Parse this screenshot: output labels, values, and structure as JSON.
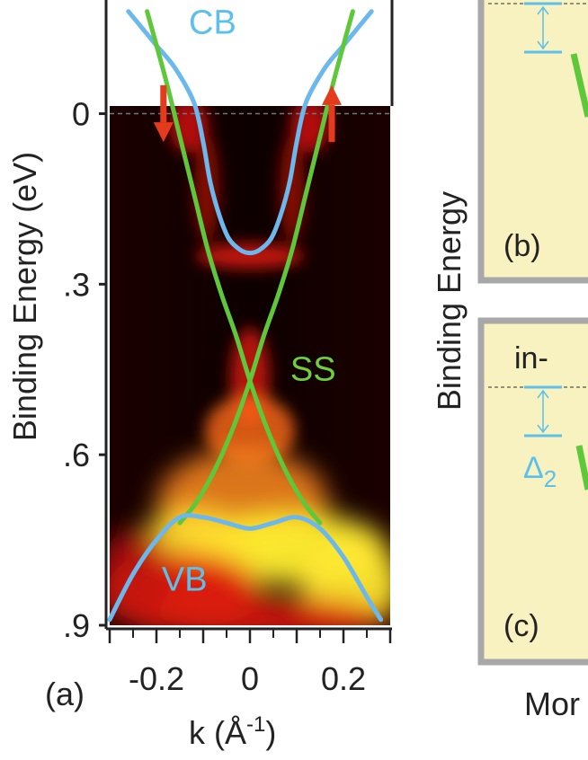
{
  "chart_data": [
    {
      "panel_label": "(a)",
      "type": "line",
      "xlabel": "k (Å",
      "xlabel_sup": "-1",
      "xlabel_suffix": ")",
      "ylabel": "Binding Energy (eV)",
      "xlim": [
        -0.3,
        0.3
      ],
      "ylim": [
        -0.2,
        0.9
      ],
      "y_inverted": true,
      "x_ticks": [
        -0.2,
        0,
        0.2
      ],
      "x_tick_labels": [
        "-0.2",
        "0",
        "0.2"
      ],
      "y_ticks": [
        0,
        0.3,
        0.6,
        0.9
      ],
      "y_tick_labels": [
        "0",
        ".3",
        ".6",
        ".9"
      ],
      "fermi_level": 0,
      "annotations": [
        {
          "text": "CB",
          "x": -0.08,
          "y": -0.16,
          "color": "#5bc0eb"
        },
        {
          "text": "SS",
          "x": 0.135,
          "y": 0.45,
          "color": "#6fcf3a"
        },
        {
          "text": "VB",
          "x": -0.14,
          "y": 0.82,
          "color": "#5bc0eb"
        }
      ],
      "spin_arrows": [
        {
          "x": -0.185,
          "y_from": -0.05,
          "y_to": 0.05,
          "direction": "down",
          "color": "#e53b1d"
        },
        {
          "x": 0.175,
          "y_from": 0.05,
          "y_to": -0.05,
          "direction": "up",
          "color": "#e53b1d"
        }
      ],
      "series": [
        {
          "name": "",
          "band": "CB",
          "color": "#6ab8ee",
          "x": [
            -0.26,
            -0.23,
            -0.2,
            -0.16,
            -0.12,
            -0.1,
            -0.085,
            -0.065,
            -0.045,
            -0.02,
            0,
            0.02,
            0.045,
            0.065,
            0.085,
            0.1,
            0.12,
            0.16,
            0.2,
            0.23,
            0.26
          ],
          "y": [
            -0.18,
            -0.15,
            -0.12,
            -0.08,
            -0.02,
            0.05,
            0.12,
            0.18,
            0.22,
            0.24,
            0.245,
            0.24,
            0.22,
            0.18,
            0.12,
            0.05,
            -0.02,
            -0.08,
            -0.12,
            -0.15,
            -0.18
          ]
        },
        {
          "name": "",
          "band": "SS-1",
          "color": "#5ec83a",
          "x": [
            -0.22,
            -0.18,
            -0.15,
            -0.12,
            -0.09,
            -0.06,
            -0.03,
            0,
            0.03,
            0.06,
            0.09,
            0.12,
            0.15
          ],
          "y": [
            -0.18,
            -0.06,
            0.04,
            0.14,
            0.24,
            0.32,
            0.39,
            0.47,
            0.54,
            0.6,
            0.65,
            0.69,
            0.72
          ]
        },
        {
          "name": "",
          "band": "SS-2",
          "color": "#5ec83a",
          "x": [
            0.22,
            0.18,
            0.15,
            0.12,
            0.09,
            0.06,
            0.03,
            0,
            -0.03,
            -0.06,
            -0.09,
            -0.12,
            -0.15
          ],
          "y": [
            -0.18,
            -0.06,
            0.04,
            0.14,
            0.24,
            0.32,
            0.39,
            0.47,
            0.54,
            0.6,
            0.65,
            0.69,
            0.72
          ]
        },
        {
          "name": "",
          "band": "VB",
          "color": "#6ab8ee",
          "x": [
            -0.3,
            -0.25,
            -0.2,
            -0.15,
            -0.1,
            -0.05,
            0,
            0.05,
            0.1,
            0.15,
            0.2,
            0.25,
            0.28
          ],
          "y": [
            0.89,
            0.81,
            0.75,
            0.71,
            0.71,
            0.72,
            0.73,
            0.72,
            0.71,
            0.73,
            0.78,
            0.85,
            0.89
          ]
        }
      ]
    },
    {
      "panel_label": "(b)",
      "type": "diagram",
      "note_color_bg": "#f8f2c0"
    },
    {
      "panel_label": "(c)",
      "type": "diagram",
      "texts": [
        "in-",
        "Δ",
        "2"
      ],
      "note_color_bg": "#f8f2c0"
    }
  ],
  "shared": {
    "ylabel_right": "Binding Energy",
    "bottom_right_text": "Mor"
  },
  "colors": {
    "cb_vb": "#6ab8ee",
    "ss": "#5ec83a",
    "arrows": "#e53b1d",
    "panel_fill": "#f8f2c0",
    "panel_border": "#a8a8a8",
    "delta": "#5bc0eb"
  }
}
